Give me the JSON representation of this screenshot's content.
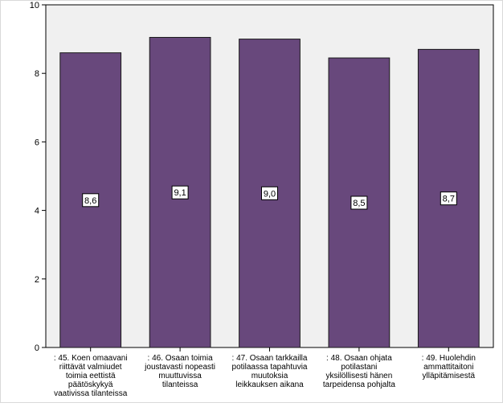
{
  "chart_data": {
    "type": "bar",
    "categories": [
      [
        ": 45. Koen omaavani",
        "riittävät valmiudet",
        "toimia eettistä",
        "päätöskykyä",
        "vaativissa tilanteissa"
      ],
      [
        ": 46. Osaan toimia",
        "joustavasti nopeasti",
        "muuttuvissa",
        "tilanteissa"
      ],
      [
        ": 47. Osaan tarkkailla",
        "potilaassa tapahtuvia",
        "muutoksia",
        "leikkauksen aikana"
      ],
      [
        ": 48. Osaan ohjata",
        "potilastani",
        "yksilöllisesti hänen",
        "tarpeidensa pohjalta"
      ],
      [
        ": 49. Huolehdin",
        "ammattitaitoni",
        "ylläpitämisestä"
      ]
    ],
    "values": [
      8.6,
      9.05,
      9.0,
      8.45,
      8.7
    ],
    "data_labels": [
      "8,6",
      "9,1",
      "9,0",
      "8,5",
      "8,7"
    ],
    "yticks": [
      "0",
      "2",
      "4",
      "6",
      "8",
      "10"
    ],
    "ylim": [
      0,
      10
    ],
    "title": "",
    "xlabel": "",
    "ylabel": "",
    "grid": false,
    "colors": {
      "bar": "#68487c",
      "bar_edge": "#1a1a1a",
      "plot_bg": "#f0f0f0",
      "frame": "#000000"
    }
  }
}
